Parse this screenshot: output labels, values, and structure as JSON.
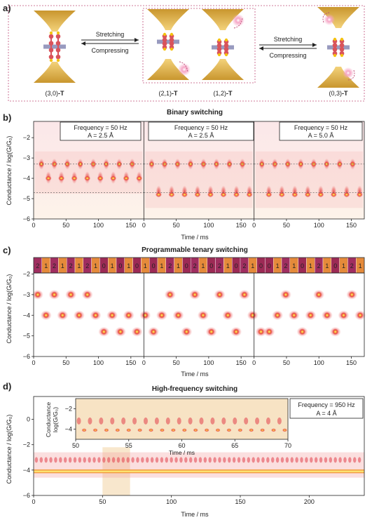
{
  "panel_a": {
    "label": "a)",
    "arrow1_top": "Stretching",
    "arrow1_bottom": "Compressing",
    "arrow2_top": "Stretching",
    "arrow2_bottom": "Compressing",
    "states": [
      {
        "name": "(3,0)",
        "suffix": "-T"
      },
      {
        "name": "(2,1)",
        "suffix": "-T"
      },
      {
        "name": "(1,2)",
        "suffix": "-T"
      },
      {
        "name": "(0,3)",
        "suffix": "-T"
      }
    ],
    "colors": {
      "gold": "#e6b84a",
      "molecule": "#d9535b",
      "bar": "#8d8fb8",
      "glow": "#f09ab8",
      "frame": "#c0507a"
    }
  },
  "panel_b": {
    "label": "b)",
    "title": "Binary switching",
    "ylabel": "Conductance / log(G/G₀)",
    "xlabel": "Time / ms",
    "boxes": [
      {
        "freq": "Frequency = 50 Hz",
        "amp": "A = 2.5 Å"
      },
      {
        "freq": "Frequency = 50 Hz",
        "amp": "A = 2.5 Å"
      },
      {
        "freq": "Frequency = 50 Hz",
        "amp": "A = 5.0 Å"
      }
    ]
  },
  "panel_c": {
    "label": "c)",
    "title": "Programmable tenary switching",
    "ylabel": "Conductance / log(G/G₀)",
    "xlabel": "Time / ms",
    "sequence": [
      "2",
      "1",
      "2",
      "1",
      "2",
      "1",
      "2",
      "1",
      "0",
      "1",
      "0",
      "1",
      "0",
      "1",
      "0",
      "1",
      "2",
      "1",
      "0",
      "2",
      "1",
      "0",
      "2",
      "1",
      "0",
      "2",
      "1",
      "0",
      "0",
      "1",
      "2",
      "1",
      "0",
      "1",
      "2",
      "1",
      "0",
      "1",
      "2",
      "1"
    ],
    "seq_colors": {
      "0": "#9c2a55",
      "1": "#e58a3a",
      "2": "#a02e60"
    }
  },
  "panel_d": {
    "label": "d)",
    "title": "High-frequency switching",
    "ylabel": "Conductance / log(G/G₀)",
    "xlabel": "Time / ms",
    "box_freq": "Frequency = 950 Hz",
    "box_amp": "A = 4 Å",
    "inset_ylabel_1": "Conductance",
    "inset_ylabel_2": "log(G/G₀)",
    "inset_xlabel": "Time / ms",
    "highlight_color": "#f7e3c4"
  },
  "chart_data": [
    {
      "type": "heatmap",
      "title": "Binary switching",
      "xlabel": "Time / ms",
      "ylabel": "Conductance / log(G/G₀)",
      "subpanels": 3,
      "x_ticks": [
        0,
        50,
        100,
        150
      ],
      "xlim": [
        0,
        170
      ],
      "y_ticks": [
        -2,
        -3,
        -4,
        -5,
        -6
      ],
      "ylim": [
        -6,
        -1.2
      ],
      "levels": [
        [
          -3.3,
          -4.0
        ],
        [
          -3.3,
          -4.7
        ],
        [
          -3.3,
          -4.7
        ]
      ],
      "cycles_per_subpanel": [
        8,
        8,
        8
      ]
    },
    {
      "type": "heatmap",
      "title": "Programmable tenary switching",
      "xlabel": "Time / ms",
      "ylabel": "Conductance / log(G/G₀)",
      "subpanels": 3,
      "x_ticks": [
        0,
        50,
        100,
        150
      ],
      "xlim": [
        0,
        170
      ],
      "y_ticks": [
        -2,
        -3,
        -4,
        -5,
        -6
      ],
      "ylim": [
        -6,
        -1.2
      ],
      "levels": {
        "2": -3.0,
        "1": -4.0,
        "0": -4.8
      }
    },
    {
      "type": "heatmap",
      "title": "High-frequency switching",
      "xlabel": "Time / ms",
      "ylabel": "Conductance / log(G/G₀)",
      "x_ticks": [
        0,
        50,
        100,
        150,
        200
      ],
      "xlim": [
        0,
        240
      ],
      "y_ticks": [
        0,
        -2,
        -4,
        -6
      ],
      "ylim": [
        -6,
        1.8
      ],
      "highlight_range": [
        50,
        70
      ],
      "inset": {
        "x_ticks": [
          50,
          55,
          60,
          65,
          70
        ],
        "xlim": [
          50,
          70
        ],
        "y_ticks": [
          -2,
          -4
        ],
        "ylim": [
          -5,
          -1
        ]
      }
    }
  ]
}
